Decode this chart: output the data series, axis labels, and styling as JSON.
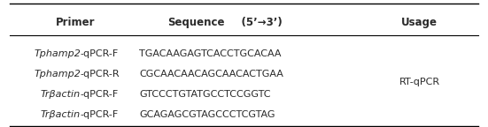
{
  "headers": [
    "Primer",
    "Sequence    (5’→3’)",
    "Usage"
  ],
  "header_parts": [
    {
      "text": "Primer",
      "bold": true
    },
    {
      "part1": "Sequence",
      "part2": "    (5’→3’)",
      "bold": true
    },
    {
      "text": "Usage",
      "bold": true
    }
  ],
  "rows": [
    {
      "italic": "Tphamp2",
      "normal": "-qPCR-F",
      "seq": "TGACAAGAGTCACCTGCACAA"
    },
    {
      "italic": "Tphamp2",
      "normal": "-qPCR-R",
      "seq": "CGCAACAACAGCAACACTGAA"
    },
    {
      "italic": "Trβactin",
      "normal": "-qPCR-F",
      "seq": "GTCCCTGTATGCCTCCGGTC"
    },
    {
      "italic": "Trβactin",
      "normal": "-qPCR-F",
      "seq": "GCAGAGCGTAGCCCTCGTAG"
    }
  ],
  "usage_label": "RT-qPCR",
  "text_color": "#2a2a2a",
  "header_fontsize": 8.5,
  "row_fontsize": 8.0,
  "fig_width": 5.51,
  "fig_height": 1.44,
  "dpi": 100
}
